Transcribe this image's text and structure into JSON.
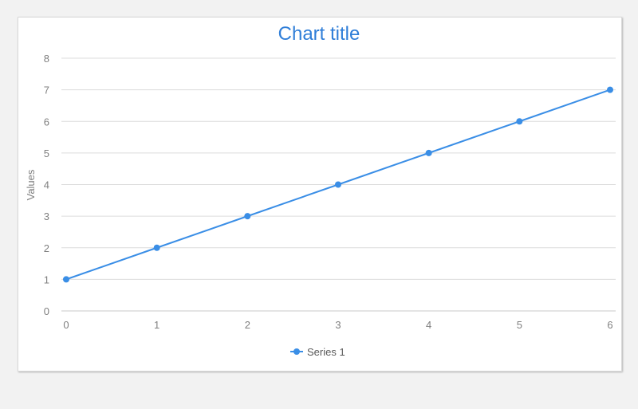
{
  "chart_data": {
    "type": "line",
    "title": "Chart title",
    "xlabel": "",
    "ylabel": "Values",
    "x": [
      0,
      1,
      2,
      3,
      4,
      5,
      6
    ],
    "series": [
      {
        "name": "Series 1",
        "values": [
          1,
          2,
          3,
          4,
          5,
          6,
          7
        ],
        "color": "#3a8ee6"
      }
    ],
    "xlim": [
      0,
      6
    ],
    "ylim": [
      0,
      8
    ],
    "yticks": [
      0,
      1,
      2,
      3,
      4,
      5,
      6,
      7,
      8
    ],
    "xticks": [
      0,
      1,
      2,
      3,
      4,
      5,
      6
    ],
    "grid": true,
    "legend_position": "bottom"
  }
}
